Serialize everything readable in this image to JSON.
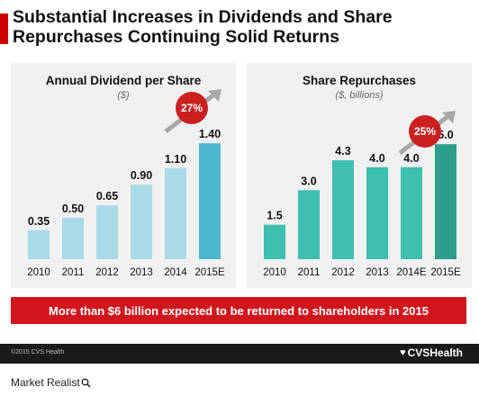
{
  "header": {
    "title": "Substantial Increases in Dividends and Share Repurchases Continuing Solid Returns"
  },
  "chart_data": [
    {
      "type": "bar",
      "title": "Annual Dividend per Share",
      "subtitle": "($)",
      "categories": [
        "2010",
        "2011",
        "2012",
        "2013",
        "2014",
        "2015E"
      ],
      "values": [
        0.35,
        0.5,
        0.65,
        0.9,
        1.1,
        1.4
      ],
      "value_labels": [
        "0.35",
        "0.50",
        "0.65",
        "0.90",
        "1.10",
        "1.40"
      ],
      "ylim": [
        0,
        1.5
      ],
      "callout": "27%",
      "colors": {
        "bar": "#a9dbe6",
        "highlight": "#4bb8cf"
      }
    },
    {
      "type": "bar",
      "title": "Share Repurchases",
      "subtitle": "($, billions)",
      "categories": [
        "2010",
        "2011",
        "2012",
        "2013",
        "2014E",
        "2015E"
      ],
      "values": [
        1.5,
        3.0,
        4.3,
        4.0,
        4.0,
        5.0
      ],
      "value_labels": [
        "1.5",
        "3.0",
        "4.3",
        "4.0",
        "4.0",
        "5.0"
      ],
      "ylim": [
        0,
        5.4
      ],
      "callout": "25%",
      "colors": {
        "bar": "#3fbfae",
        "highlight": "#2e9e8c"
      }
    }
  ],
  "banner": {
    "text": "More than $6 billion expected to be returned to shareholders in 2015"
  },
  "footer": {
    "copyright": "©2015 CVS Health",
    "logo": "CVSHealth",
    "watermark": "Market Realist"
  },
  "colors": {
    "accent_red": "#d0161c",
    "footer_dark": "#1a1a1a"
  }
}
